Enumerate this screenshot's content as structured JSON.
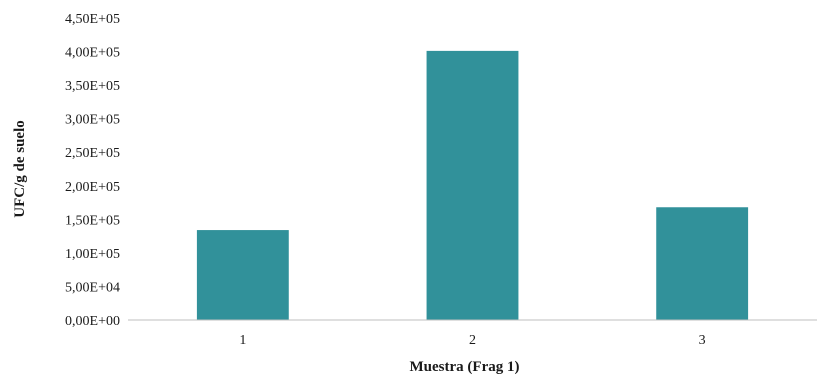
{
  "chart_data": {
    "type": "bar",
    "categories": [
      "1",
      "2",
      "3"
    ],
    "values": [
      134000,
      401000,
      168000
    ],
    "title": "",
    "xlabel": "Muestra (Frag  1)",
    "ylabel": "UFC/g de suelo",
    "ylim": [
      0,
      450000
    ],
    "yticks": [
      "0,00E+00",
      "5,00E+04",
      "1,00E+05",
      "1,50E+05",
      "2,00E+05",
      "2,50E+05",
      "3,00E+05",
      "3,50E+05",
      "4,00E+05",
      "4,50E+05"
    ],
    "grid": false,
    "legend": "none",
    "bar_color": "#31919a"
  }
}
